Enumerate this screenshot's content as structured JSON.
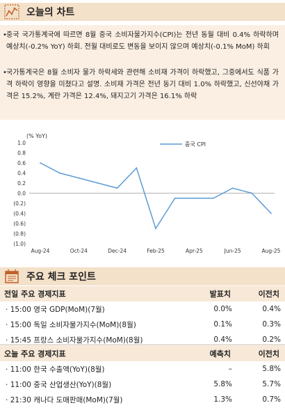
{
  "section1": {
    "title": "오늘의 차트"
  },
  "summary": {
    "bullets": [
      "중국 국가통계국에 따르면 8월 중국 소비자물가지수(CPI)는 전년 동월 대비 0.4% 하락하며 예상치(-0.2% YoY) 하회. 전월 대비로도 변동을 보이지 않으며 예상치(-0.1% MoM) 하회",
      "국가통계국은 8월 소비자 물가 하락세와 관련해 소비재 가격이 하락했고, 그중에서도 식품 가격 하락이 영향을 미쳤다고 설명. 소비재 가격은 전년 동기 대비 1.0% 하락했고, 신선야채 가격은 15.2%, 계란 가격은 12.4%, 돼지고기 가격은 16.1% 하락"
    ]
  },
  "chart_data": {
    "type": "line",
    "ylabel": "(% YoY)",
    "ylim": [
      -1.0,
      1.0
    ],
    "yticks": [
      "1.0",
      "0.8",
      "0.6",
      "0.4",
      "0.2",
      "0.0",
      "(0.2)",
      "(0.4)",
      "(0.6)",
      "(0.8)",
      "(1.0)"
    ],
    "xticks": [
      "Aug-24",
      "Oct-24",
      "Dec-24",
      "Feb-25",
      "Apr-25",
      "Jun-25",
      "Aug-25"
    ],
    "x": [
      "Aug-24",
      "Sep-24",
      "Oct-24",
      "Nov-24",
      "Dec-24",
      "Jan-25",
      "Feb-25",
      "Mar-25",
      "Apr-25",
      "May-25",
      "Jun-25",
      "Jul-25",
      "Aug-25"
    ],
    "series": [
      {
        "name": "중국 CPI",
        "color": "#5b9bd5",
        "values": [
          0.6,
          0.4,
          0.3,
          0.2,
          0.1,
          0.5,
          -0.7,
          -0.1,
          -0.1,
          -0.1,
          0.1,
          0.0,
          -0.4
        ]
      }
    ],
    "legend": "top-right"
  },
  "section2": {
    "title": "주요 체크 포인트"
  },
  "table_prev": {
    "header": {
      "label": "전일 주요 경제지표",
      "col2": "발표치",
      "col3": "이전치"
    },
    "rows": [
      {
        "label": "15:00 영국 GDP(MoM)(7월)",
        "v1": "0.0%",
        "v2": "0.4%"
      },
      {
        "label": "15:00 독일 소비자물가지수(MoM)(8월)",
        "v1": "0.1%",
        "v2": "0.3%"
      },
      {
        "label": "15:45 프랑스 소비자물가지수(MoM)(8월)",
        "v1": "0.4%",
        "v2": "0.2%"
      }
    ]
  },
  "table_today": {
    "header": {
      "label": "오늘 주요 경제지표",
      "col2": "예측치",
      "col3": "이전치"
    },
    "rows": [
      {
        "label": "11:00 한국 수출액(YoY)(8월)",
        "v1": "–",
        "v2": "5.8%"
      },
      {
        "label": "11:00 중국 산업생산(YoY)(8월)",
        "v1": "5.8%",
        "v2": "5.7%"
      },
      {
        "label": "21:30 캐나다 도매판매(MoM)(7월)",
        "v1": "1.3%",
        "v2": "0.7%"
      }
    ]
  }
}
